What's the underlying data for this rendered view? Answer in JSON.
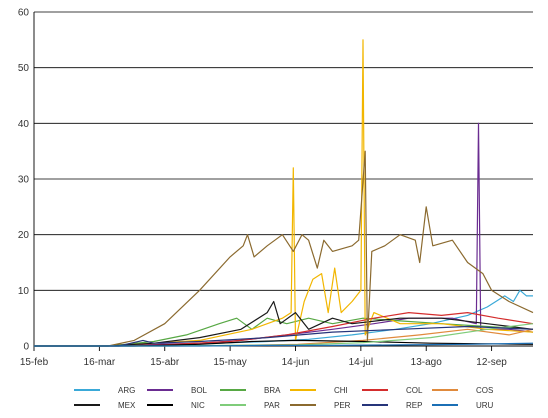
{
  "chart_data": {
    "type": "line",
    "title": "",
    "xlabel": "",
    "ylabel": "",
    "ylim": [
      0,
      60
    ],
    "yticks": [
      0,
      10,
      20,
      30,
      40,
      50,
      60
    ],
    "xlim": [
      "2020-02-15",
      "2020-10-01"
    ],
    "xticks": [
      {
        "date": "2020-02-15",
        "label": "15-feb"
      },
      {
        "date": "2020-03-16",
        "label": "16-mar"
      },
      {
        "date": "2020-04-15",
        "label": "15-abr"
      },
      {
        "date": "2020-05-15",
        "label": "15-may"
      },
      {
        "date": "2020-06-14",
        "label": "14-jun"
      },
      {
        "date": "2020-07-14",
        "label": "14-jul"
      },
      {
        "date": "2020-08-13",
        "label": "13-ago"
      },
      {
        "date": "2020-09-12",
        "label": "12-sep"
      }
    ],
    "grid": "horizontal",
    "legend_position": "bottom",
    "series": [
      {
        "name": "ARG",
        "color": "#3aa9d8",
        "points": [
          [
            "2020-02-15",
            0
          ],
          [
            "2020-03-15",
            0
          ],
          [
            "2020-04-01",
            0.1
          ],
          [
            "2020-04-20",
            0.3
          ],
          [
            "2020-05-10",
            0.5
          ],
          [
            "2020-06-01",
            0.8
          ],
          [
            "2020-06-20",
            1.2
          ],
          [
            "2020-07-10",
            2
          ],
          [
            "2020-07-30",
            3
          ],
          [
            "2020-08-15",
            4
          ],
          [
            "2020-09-01",
            5.5
          ],
          [
            "2020-09-10",
            7
          ],
          [
            "2020-09-18",
            9
          ],
          [
            "2020-09-22",
            8
          ],
          [
            "2020-09-25",
            10
          ],
          [
            "2020-09-28",
            9
          ],
          [
            "2020-10-01",
            9
          ]
        ]
      },
      {
        "name": "BOL",
        "color": "#6a2c91",
        "points": [
          [
            "2020-02-15",
            0
          ],
          [
            "2020-03-25",
            0
          ],
          [
            "2020-04-10",
            0.3
          ],
          [
            "2020-05-01",
            0.5
          ],
          [
            "2020-05-20",
            1
          ],
          [
            "2020-06-10",
            2
          ],
          [
            "2020-07-01",
            3
          ],
          [
            "2020-07-20",
            4
          ],
          [
            "2020-08-05",
            5
          ],
          [
            "2020-08-25",
            5
          ],
          [
            "2020-09-05",
            4
          ],
          [
            "2020-09-06",
            40
          ],
          [
            "2020-09-07",
            3
          ],
          [
            "2020-09-20",
            3
          ],
          [
            "2020-10-01",
            2.5
          ]
        ]
      },
      {
        "name": "BRA",
        "color": "#57a844",
        "points": [
          [
            "2020-02-15",
            0
          ],
          [
            "2020-03-20",
            0
          ],
          [
            "2020-04-10",
            0.8
          ],
          [
            "2020-04-25",
            2
          ],
          [
            "2020-05-10",
            4
          ],
          [
            "2020-05-18",
            5
          ],
          [
            "2020-05-25",
            3
          ],
          [
            "2020-06-01",
            5
          ],
          [
            "2020-06-10",
            4
          ],
          [
            "2020-06-20",
            5
          ],
          [
            "2020-07-01",
            4
          ],
          [
            "2020-07-15",
            5
          ],
          [
            "2020-08-01",
            4.5
          ],
          [
            "2020-08-20",
            4
          ],
          [
            "2020-09-10",
            3.5
          ],
          [
            "2020-10-01",
            3
          ]
        ]
      },
      {
        "name": "CHI",
        "color": "#f2b600",
        "points": [
          [
            "2020-02-15",
            0
          ],
          [
            "2020-03-20",
            0
          ],
          [
            "2020-04-10",
            0.5
          ],
          [
            "2020-05-01",
            1
          ],
          [
            "2020-05-25",
            3
          ],
          [
            "2020-06-08",
            5
          ],
          [
            "2020-06-12",
            6
          ],
          [
            "2020-06-13",
            32
          ],
          [
            "2020-06-14",
            1
          ],
          [
            "2020-06-18",
            8
          ],
          [
            "2020-06-22",
            12
          ],
          [
            "2020-06-26",
            13
          ],
          [
            "2020-06-29",
            6
          ],
          [
            "2020-07-02",
            14
          ],
          [
            "2020-07-05",
            6
          ],
          [
            "2020-07-10",
            8
          ],
          [
            "2020-07-14",
            10
          ],
          [
            "2020-07-15",
            55
          ],
          [
            "2020-07-16",
            2
          ],
          [
            "2020-07-20",
            6
          ],
          [
            "2020-08-01",
            4
          ],
          [
            "2020-08-20",
            4
          ],
          [
            "2020-09-10",
            3
          ],
          [
            "2020-10-01",
            2.5
          ]
        ]
      },
      {
        "name": "COL",
        "color": "#d42d2d",
        "points": [
          [
            "2020-02-15",
            0
          ],
          [
            "2020-03-25",
            0
          ],
          [
            "2020-04-15",
            0.2
          ],
          [
            "2020-05-15",
            0.8
          ],
          [
            "2020-06-10",
            2
          ],
          [
            "2020-07-01",
            3.5
          ],
          [
            "2020-07-20",
            5
          ],
          [
            "2020-08-05",
            6
          ],
          [
            "2020-08-20",
            5.5
          ],
          [
            "2020-09-01",
            6
          ],
          [
            "2020-09-15",
            5
          ],
          [
            "2020-10-01",
            4
          ]
        ]
      },
      {
        "name": "COS",
        "color": "#e08a3c",
        "points": [
          [
            "2020-02-15",
            0
          ],
          [
            "2020-04-20",
            0
          ],
          [
            "2020-05-20",
            0.1
          ],
          [
            "2020-06-15",
            0.3
          ],
          [
            "2020-07-15",
            1
          ],
          [
            "2020-08-10",
            2
          ],
          [
            "2020-09-01",
            3
          ],
          [
            "2020-09-20",
            2
          ],
          [
            "2020-10-01",
            3
          ]
        ]
      },
      {
        "name": "MEX",
        "color": "#1a1a1a",
        "points": [
          [
            "2020-02-15",
            0
          ],
          [
            "2020-03-20",
            0
          ],
          [
            "2020-04-10",
            0.5
          ],
          [
            "2020-05-01",
            1.5
          ],
          [
            "2020-05-20",
            3
          ],
          [
            "2020-06-01",
            6
          ],
          [
            "2020-06-04",
            8
          ],
          [
            "2020-06-07",
            4
          ],
          [
            "2020-06-14",
            6
          ],
          [
            "2020-06-20",
            3
          ],
          [
            "2020-07-01",
            5
          ],
          [
            "2020-07-10",
            4
          ],
          [
            "2020-08-01",
            5
          ],
          [
            "2020-08-20",
            5
          ],
          [
            "2020-09-10",
            4
          ],
          [
            "2020-10-01",
            3
          ]
        ]
      },
      {
        "name": "NIC",
        "color": "#000000",
        "points": [
          [
            "2020-02-15",
            0
          ],
          [
            "2020-04-01",
            0
          ],
          [
            "2020-05-01",
            0.3
          ],
          [
            "2020-05-25",
            0.8
          ],
          [
            "2020-06-15",
            1
          ],
          [
            "2020-07-15",
            0.8
          ],
          [
            "2020-08-15",
            0.5
          ],
          [
            "2020-10-01",
            0.3
          ]
        ]
      },
      {
        "name": "PAR",
        "color": "#7fcc7a",
        "points": [
          [
            "2020-02-15",
            0
          ],
          [
            "2020-04-15",
            0
          ],
          [
            "2020-05-15",
            0.1
          ],
          [
            "2020-06-15",
            0.2
          ],
          [
            "2020-07-15",
            0.6
          ],
          [
            "2020-08-15",
            1.5
          ],
          [
            "2020-09-10",
            3
          ],
          [
            "2020-10-01",
            4
          ]
        ]
      },
      {
        "name": "PER",
        "color": "#8b6a2f",
        "points": [
          [
            "2020-02-15",
            0
          ],
          [
            "2020-03-20",
            0
          ],
          [
            "2020-04-01",
            1
          ],
          [
            "2020-04-15",
            4
          ],
          [
            "2020-05-01",
            10
          ],
          [
            "2020-05-15",
            16
          ],
          [
            "2020-05-21",
            18
          ],
          [
            "2020-05-23",
            20
          ],
          [
            "2020-05-26",
            16
          ],
          [
            "2020-06-01",
            18
          ],
          [
            "2020-06-08",
            20
          ],
          [
            "2020-06-13",
            17
          ],
          [
            "2020-06-17",
            20
          ],
          [
            "2020-06-20",
            19
          ],
          [
            "2020-06-24",
            14
          ],
          [
            "2020-06-27",
            19
          ],
          [
            "2020-07-01",
            17
          ],
          [
            "2020-07-10",
            18
          ],
          [
            "2020-07-13",
            19
          ],
          [
            "2020-07-16",
            35
          ],
          [
            "2020-07-17",
            1
          ],
          [
            "2020-07-19",
            17
          ],
          [
            "2020-07-25",
            18
          ],
          [
            "2020-08-01",
            20
          ],
          [
            "2020-08-08",
            19
          ],
          [
            "2020-08-10",
            15
          ],
          [
            "2020-08-13",
            25
          ],
          [
            "2020-08-16",
            18
          ],
          [
            "2020-08-25",
            19
          ],
          [
            "2020-09-01",
            15
          ],
          [
            "2020-09-08",
            13
          ],
          [
            "2020-09-12",
            10
          ],
          [
            "2020-09-20",
            8
          ],
          [
            "2020-10-01",
            6
          ]
        ]
      },
      {
        "name": "REP",
        "color": "#26357a",
        "points": [
          [
            "2020-02-15",
            0
          ],
          [
            "2020-03-25",
            0
          ],
          [
            "2020-04-05",
            1
          ],
          [
            "2020-04-10",
            0.5
          ],
          [
            "2020-05-01",
            0.8
          ],
          [
            "2020-06-01",
            1.5
          ],
          [
            "2020-07-01",
            2.5
          ],
          [
            "2020-08-01",
            3
          ],
          [
            "2020-09-01",
            3.5
          ],
          [
            "2020-10-01",
            3
          ]
        ]
      },
      {
        "name": "URU",
        "color": "#1b6fb5",
        "points": [
          [
            "2020-02-15",
            0
          ],
          [
            "2020-05-01",
            0
          ],
          [
            "2020-06-01",
            0.1
          ],
          [
            "2020-07-01",
            0.1
          ],
          [
            "2020-08-01",
            0.2
          ],
          [
            "2020-09-01",
            0.3
          ],
          [
            "2020-10-01",
            0.5
          ]
        ]
      }
    ]
  }
}
